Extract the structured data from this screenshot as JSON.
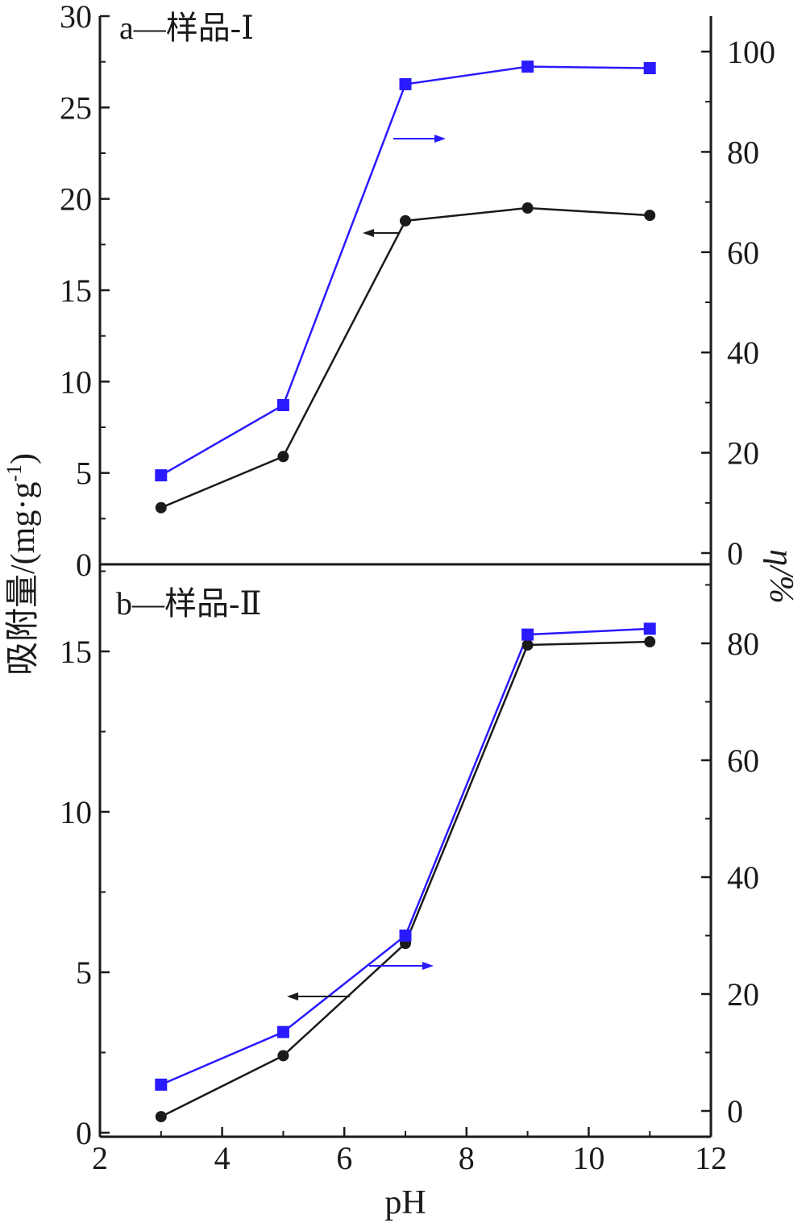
{
  "figure": {
    "xlabel": "pH",
    "ylabel_left": "吸附量/(mg·g",
    "ylabel_left_sup": "-1",
    "ylabel_left_close": ")",
    "ylabel_right": "η/%"
  },
  "colors": {
    "left_series": "#1a1a1a",
    "right_series": "#2a1aff",
    "axis": "#1a1a1a"
  },
  "chart_data": [
    {
      "type": "line",
      "panel": "a",
      "title": "a—样品-Ⅰ",
      "x": [
        3,
        5,
        7,
        9,
        11
      ],
      "xlim": [
        2,
        12
      ],
      "x_ticks": [
        2,
        4,
        6,
        8,
        10,
        12
      ],
      "y_left_lim": [
        0,
        30
      ],
      "y_left_ticks": [
        0,
        5,
        10,
        15,
        20,
        25,
        30
      ],
      "y_right_lim": [
        -2,
        107
      ],
      "y_right_ticks": [
        0,
        20,
        40,
        60,
        80,
        100
      ],
      "series": [
        {
          "axis": "left",
          "marker": "circle",
          "values": [
            3.1,
            5.9,
            18.8,
            19.5,
            19.1
          ]
        },
        {
          "axis": "right",
          "marker": "square",
          "values": [
            15.5,
            29.5,
            93.5,
            97,
            96.7
          ]
        }
      ],
      "annotations": [
        {
          "arrow": "left",
          "series": "left"
        },
        {
          "arrow": "right",
          "series": "right"
        }
      ]
    },
    {
      "type": "line",
      "panel": "b",
      "title": "b—样品-Ⅱ",
      "x": [
        3,
        5,
        7,
        9,
        11
      ],
      "xlim": [
        2,
        12
      ],
      "x_ticks": [
        2,
        4,
        6,
        8,
        10,
        12
      ],
      "y_left_lim": [
        -0.5,
        17.5
      ],
      "y_left_ticks": [
        0,
        5,
        10,
        15
      ],
      "y_right_lim": [
        -4,
        91
      ],
      "y_right_ticks": [
        0,
        20,
        40,
        60,
        80
      ],
      "series": [
        {
          "axis": "left",
          "marker": "circle",
          "values": [
            0.5,
            2.4,
            5.9,
            15.2,
            15.3
          ]
        },
        {
          "axis": "right",
          "marker": "square",
          "values": [
            4.5,
            13.5,
            30,
            81.5,
            82.5
          ]
        }
      ],
      "annotations": [
        {
          "arrow": "left",
          "series": "left"
        },
        {
          "arrow": "right",
          "series": "right"
        }
      ]
    }
  ]
}
